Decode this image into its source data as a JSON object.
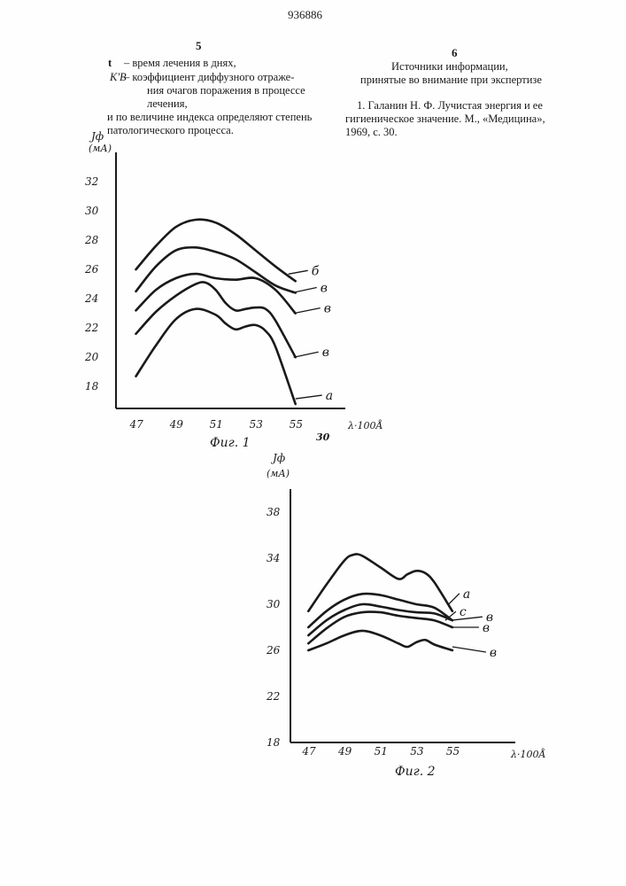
{
  "header": {
    "patent_number": "936886",
    "left_column_number": "5",
    "right_column_number": "6",
    "line_number": "30"
  },
  "left_text": {
    "t_symbol": "t",
    "t_definition": "– время лечения в днях,",
    "k_symbol": "K'B",
    "k_def_1": "– коэффициент диффузного отраже-",
    "k_def_2": "ния очагов поражения в процессе",
    "k_def_3": "лечения,",
    "p1": "и по величине индекса определяют степень",
    "p2": "патологического процесса."
  },
  "right_text": {
    "heading_1": "Источники информации,",
    "heading_2": "принятые во внимание при экспертизе",
    "ref_1": "1. Галанин Н. Ф. Лучистая энергия и ее",
    "ref_2": "гигиеническое значение. М., «Медицина»,",
    "ref_3": "1969, с. 30."
  },
  "chart_data": [
    {
      "type": "line",
      "title": "Фиг. 1",
      "ylabel_1": "Jф",
      "ylabel_2": "(мА)",
      "xlabel": "λ·100Å",
      "x_ticks": [
        "47",
        "49",
        "51",
        "53",
        "55"
      ],
      "y_ticks": [
        "32",
        "30",
        "28",
        "26",
        "24",
        "22",
        "20",
        "18"
      ],
      "xlim": [
        46,
        57.5
      ],
      "ylim": [
        16.5,
        34
      ],
      "series": [
        {
          "name": "б",
          "x": [
            47,
            48,
            49,
            50,
            51,
            52,
            53,
            54,
            55
          ],
          "values": [
            26,
            27.6,
            28.9,
            29.4,
            29.2,
            28.4,
            27.3,
            26.2,
            25.2
          ]
        },
        {
          "name": "в",
          "x": [
            47,
            48,
            49,
            50,
            51,
            52,
            53,
            54,
            55
          ],
          "values": [
            24.5,
            26.2,
            27.3,
            27.5,
            27.2,
            26.7,
            25.8,
            24.9,
            24.4
          ]
        },
        {
          "name": "в",
          "x": [
            47,
            48,
            49,
            50,
            51,
            52,
            53,
            54,
            55
          ],
          "values": [
            23.2,
            24.6,
            25.4,
            25.7,
            25.4,
            25.3,
            25.4,
            24.6,
            23.0
          ]
        },
        {
          "name": "в",
          "x": [
            47,
            48,
            49,
            50,
            50.5,
            51,
            51.5,
            52,
            52.5,
            53,
            53.5,
            54,
            55
          ],
          "values": [
            21.6,
            23.1,
            24.2,
            25.0,
            25.1,
            24.6,
            23.7,
            23.2,
            23.3,
            23.4,
            23.3,
            22.5,
            20.0
          ]
        },
        {
          "name": "а",
          "x": [
            47,
            48,
            49,
            50,
            51,
            51.5,
            52,
            52.5,
            53,
            53.5,
            54,
            55
          ],
          "values": [
            18.7,
            20.8,
            22.6,
            23.3,
            22.9,
            22.3,
            21.9,
            22.1,
            22.2,
            21.8,
            20.7,
            16.8
          ]
        }
      ]
    },
    {
      "type": "line",
      "title": "Фиг. 2",
      "ylabel_1": "Jф",
      "ylabel_2": "(мА)",
      "xlabel": "λ·100Å",
      "x_ticks": [
        "47",
        "49",
        "51",
        "53",
        "55"
      ],
      "y_ticks": [
        "38",
        "34",
        "30",
        "26",
        "22",
        "18"
      ],
      "xlim": [
        46,
        58.5
      ],
      "ylim": [
        18,
        40
      ],
      "series": [
        {
          "name": "а",
          "x": [
            47,
            48,
            49,
            49.5,
            50,
            51,
            52,
            52.5,
            53,
            53.5,
            54,
            55
          ],
          "values": [
            29.4,
            31.7,
            33.8,
            34.3,
            34.2,
            33.2,
            32.2,
            32.6,
            32.9,
            32.7,
            31.9,
            29.4
          ]
        },
        {
          "name": "с",
          "x": [
            47,
            48,
            49,
            50,
            51,
            52,
            53,
            54,
            55
          ],
          "values": [
            28.0,
            29.4,
            30.4,
            30.9,
            30.8,
            30.4,
            30.0,
            29.7,
            28.6
          ]
        },
        {
          "name": "в",
          "x": [
            47,
            48,
            49,
            50,
            51,
            52,
            53,
            54,
            55
          ],
          "values": [
            27.3,
            28.6,
            29.5,
            30.0,
            29.8,
            29.5,
            29.3,
            29.2,
            28.6
          ]
        },
        {
          "name": "в",
          "x": [
            47,
            48,
            49,
            50,
            51,
            52,
            53,
            54,
            55
          ],
          "values": [
            26.6,
            27.9,
            28.9,
            29.3,
            29.3,
            29.0,
            28.8,
            28.6,
            28.0
          ]
        },
        {
          "name": "в",
          "x": [
            47,
            48,
            49,
            50,
            51,
            52,
            52.5,
            53,
            53.5,
            54,
            55
          ],
          "values": [
            26.0,
            26.6,
            27.3,
            27.7,
            27.3,
            26.6,
            26.3,
            26.7,
            26.9,
            26.5,
            26.0
          ]
        }
      ]
    }
  ]
}
